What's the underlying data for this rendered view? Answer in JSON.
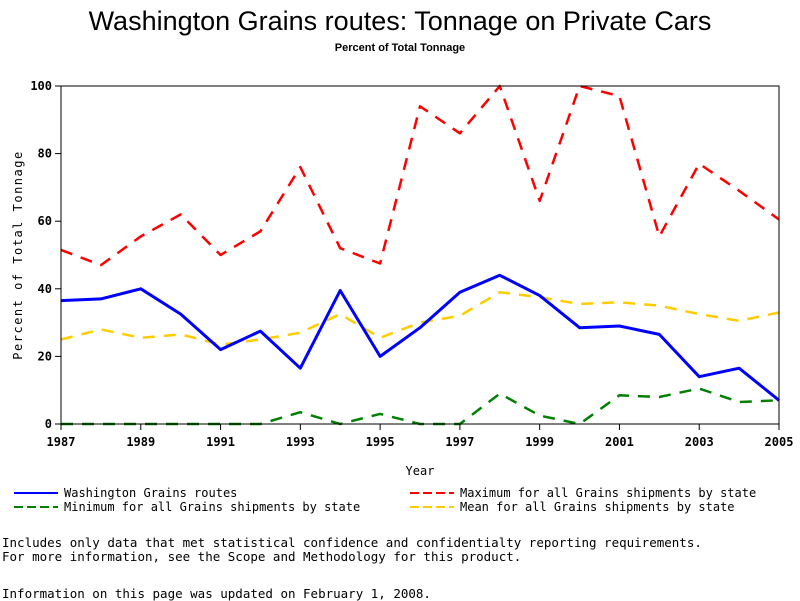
{
  "chart_data": {
    "type": "line",
    "title": "Washington Grains routes: Tonnage on Private Cars",
    "subtitle": "Percent of Total Tonnage",
    "xlabel": "Year",
    "ylabel": "Percent of Total Tonnage",
    "xlim": [
      1987,
      2005
    ],
    "ylim": [
      0,
      100
    ],
    "x_ticks": [
      "1987",
      "1989",
      "1991",
      "1993",
      "1995",
      "1997",
      "1999",
      "2001",
      "2003",
      "2005"
    ],
    "y_ticks": [
      "0",
      "20",
      "40",
      "60",
      "80",
      "100"
    ],
    "grid": false,
    "x": [
      1987,
      1988,
      1989,
      1990,
      1991,
      1992,
      1993,
      1994,
      1995,
      1996,
      1997,
      1998,
      1999,
      2000,
      2001,
      2002,
      2003,
      2004,
      2005
    ],
    "series": [
      {
        "name": "Washington Grains routes",
        "color": "#0000ff",
        "style": "solid",
        "values": [
          36.5,
          37.0,
          40.0,
          32.5,
          22.0,
          27.5,
          16.5,
          39.5,
          20.0,
          28.5,
          39.0,
          44.0,
          38.0,
          28.5,
          29.0,
          26.5,
          14.0,
          16.5,
          7.0
        ]
      },
      {
        "name": "Maximum for all Grains shipments by state",
        "color": "#ff0000",
        "style": "dashed",
        "values": [
          51.5,
          47.0,
          55.5,
          62.0,
          50.0,
          57.0,
          76.0,
          52.0,
          47.5,
          94.0,
          86.0,
          100.0,
          66.0,
          100.0,
          97.0,
          55.5,
          77.0,
          69.0,
          60.5
        ]
      },
      {
        "name": "Minimum for all Grains shipments by state",
        "color": "#008000",
        "style": "dashed",
        "values": [
          0,
          0,
          0,
          0,
          0,
          0,
          3.5,
          0,
          3.0,
          0,
          0,
          9.0,
          2.5,
          0,
          8.5,
          8.0,
          10.5,
          6.5,
          7.0
        ]
      },
      {
        "name": "Mean for all Grains shipments by state",
        "color": "#ffcc00",
        "style": "dashed",
        "values": [
          25.0,
          28.0,
          25.5,
          26.5,
          23.5,
          25.0,
          27.0,
          32.5,
          25.5,
          30.0,
          32.0,
          39.0,
          37.5,
          35.5,
          36.0,
          35.0,
          32.5,
          30.5,
          33.0
        ]
      }
    ],
    "legend_position": "bottom"
  },
  "notes": {
    "line1": "Includes only data that met statistical confidence and confidentialty reporting requirements.",
    "line2": "For more information, see the Scope and Methodology for this product.",
    "updated": "Information on this page was updated on February 1, 2008."
  }
}
